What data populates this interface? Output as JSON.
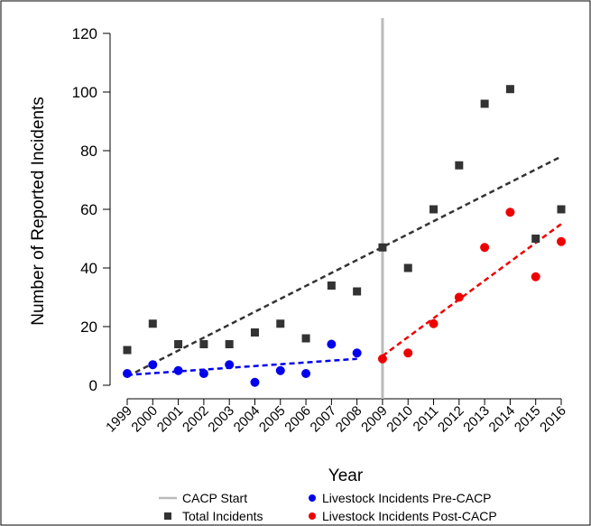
{
  "chart_data": {
    "type": "scatter",
    "title": "",
    "xlabel": "Year",
    "ylabel": "Number of Reported Incidents",
    "ylim": [
      0,
      120
    ],
    "yticks": [
      0,
      20,
      40,
      60,
      80,
      100,
      120
    ],
    "xlim": [
      1999,
      2016
    ],
    "xticks": [
      "1999",
      "2000",
      "2001",
      "2002",
      "2003",
      "2004",
      "2005",
      "2006",
      "2007",
      "2008",
      "2009",
      "2010",
      "2011",
      "2012",
      "2013",
      "2014",
      "2015",
      "2016"
    ],
    "grid": false,
    "legend_position": "bottom",
    "vline": {
      "x": 2009,
      "name": "CACP Start",
      "color": "#bbbbbb"
    },
    "series": [
      {
        "name": "Total Incidents",
        "marker": "square",
        "color": "#333333",
        "x": [
          1999,
          2000,
          2001,
          2002,
          2003,
          2004,
          2005,
          2006,
          2007,
          2008,
          2009,
          2010,
          2011,
          2012,
          2013,
          2014,
          2015,
          2016
        ],
        "y": [
          12,
          21,
          14,
          14,
          14,
          18,
          21,
          16,
          34,
          32,
          47,
          40,
          60,
          75,
          96,
          101,
          50,
          60
        ],
        "trend": {
          "x": [
            1999,
            2016
          ],
          "y": [
            3,
            78
          ],
          "color": "#333333"
        }
      },
      {
        "name": "Livestock Incidents Pre-CACP",
        "marker": "circle",
        "color": "#0000ee",
        "x": [
          1999,
          2000,
          2001,
          2002,
          2003,
          2004,
          2005,
          2006,
          2007,
          2008
        ],
        "y": [
          4,
          7,
          5,
          4,
          7,
          1,
          5,
          4,
          14,
          11
        ],
        "trend": {
          "x": [
            1999,
            2008
          ],
          "y": [
            3.5,
            9
          ],
          "color": "#0000ee"
        }
      },
      {
        "name": "Livestock Incidents Post-CACP",
        "marker": "circle",
        "color": "#ee0000",
        "x": [
          2009,
          2010,
          2011,
          2012,
          2013,
          2014,
          2015,
          2016
        ],
        "y": [
          9,
          11,
          21,
          30,
          47,
          59,
          37,
          49
        ],
        "trend": {
          "x": [
            2009,
            2016
          ],
          "y": [
            10,
            55
          ],
          "color": "#ee0000"
        }
      }
    ]
  }
}
